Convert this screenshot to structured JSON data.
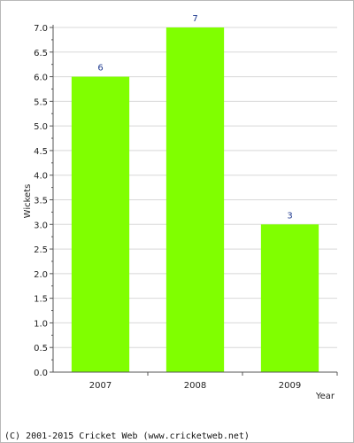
{
  "chart_data": {
    "type": "bar",
    "categories": [
      "2007",
      "2008",
      "2009"
    ],
    "values": [
      6,
      7,
      3
    ],
    "data_labels": [
      "6",
      "7",
      "3"
    ],
    "xlabel": "Year",
    "ylabel": "Wickets",
    "ylim": [
      0,
      7
    ],
    "yticks": [
      "0.0",
      "0.5",
      "1.0",
      "1.5",
      "2.0",
      "2.5",
      "3.0",
      "3.5",
      "4.0",
      "4.5",
      "5.0",
      "5.5",
      "6.0",
      "6.5",
      "7.0"
    ],
    "grid": true,
    "legend": "none"
  },
  "colors": {
    "bar": "#80ff00",
    "data_label": "#1f3a8f",
    "grid": "#d8d8d8",
    "axis": "#555555"
  },
  "footer": "(C) 2001-2015 Cricket Web (www.cricketweb.net)"
}
